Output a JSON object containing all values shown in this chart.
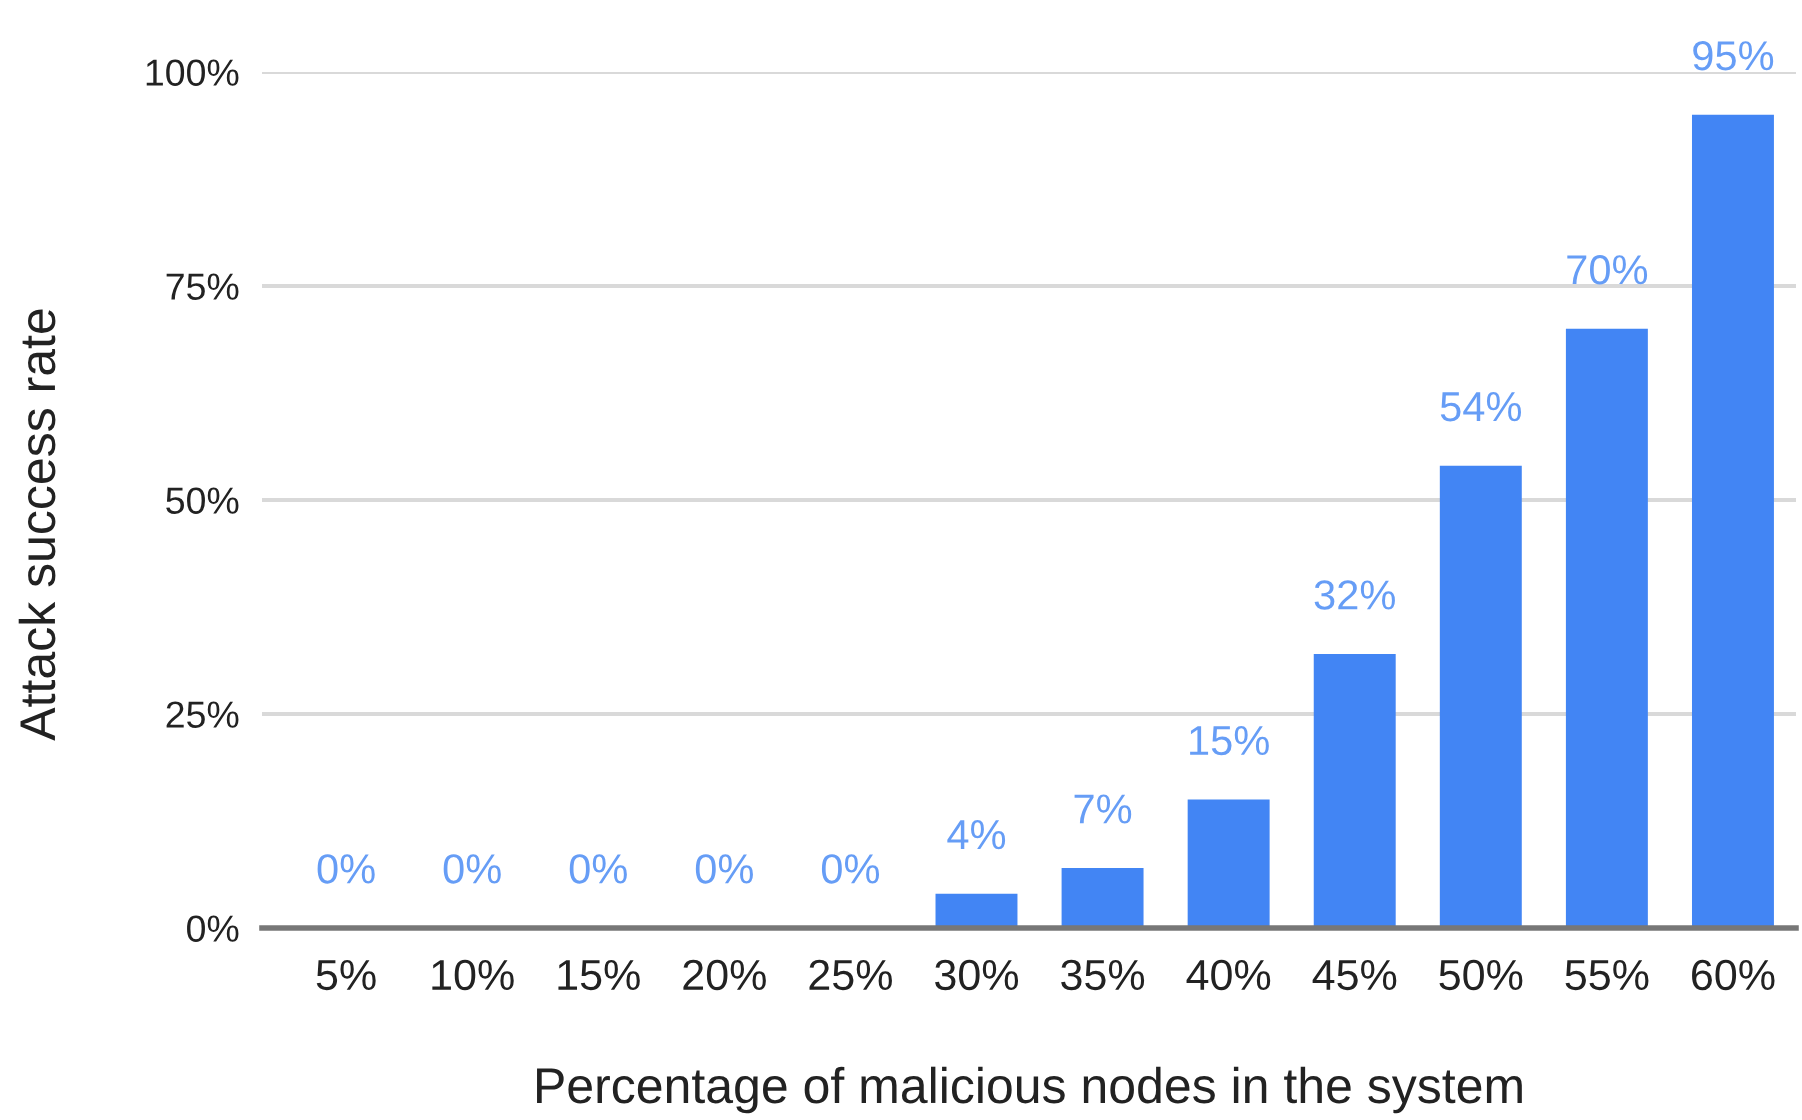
{
  "chart_data": {
    "type": "bar",
    "xlabel": "Percentage of malicious nodes in the system",
    "ylabel": "Attack success rate",
    "categories": [
      "5%",
      "10%",
      "15%",
      "20%",
      "25%",
      "30%",
      "35%",
      "40%",
      "45%",
      "50%",
      "55%",
      "60%"
    ],
    "values": [
      0,
      0,
      0,
      0,
      0,
      4,
      7,
      15,
      32,
      54,
      70,
      95
    ],
    "value_labels": [
      "0%",
      "0%",
      "0%",
      "0%",
      "0%",
      "4%",
      "7%",
      "15%",
      "32%",
      "54%",
      "70%",
      "95%"
    ],
    "color": "#4285f4",
    "ylim": [
      0,
      100
    ],
    "yticks": [
      {
        "value": 0,
        "label": "0%"
      },
      {
        "value": 25,
        "label": "25%"
      },
      {
        "value": 50,
        "label": "50%"
      },
      {
        "value": 75,
        "label": "75%"
      },
      {
        "value": 100,
        "label": "100%"
      }
    ],
    "grid": "y"
  }
}
